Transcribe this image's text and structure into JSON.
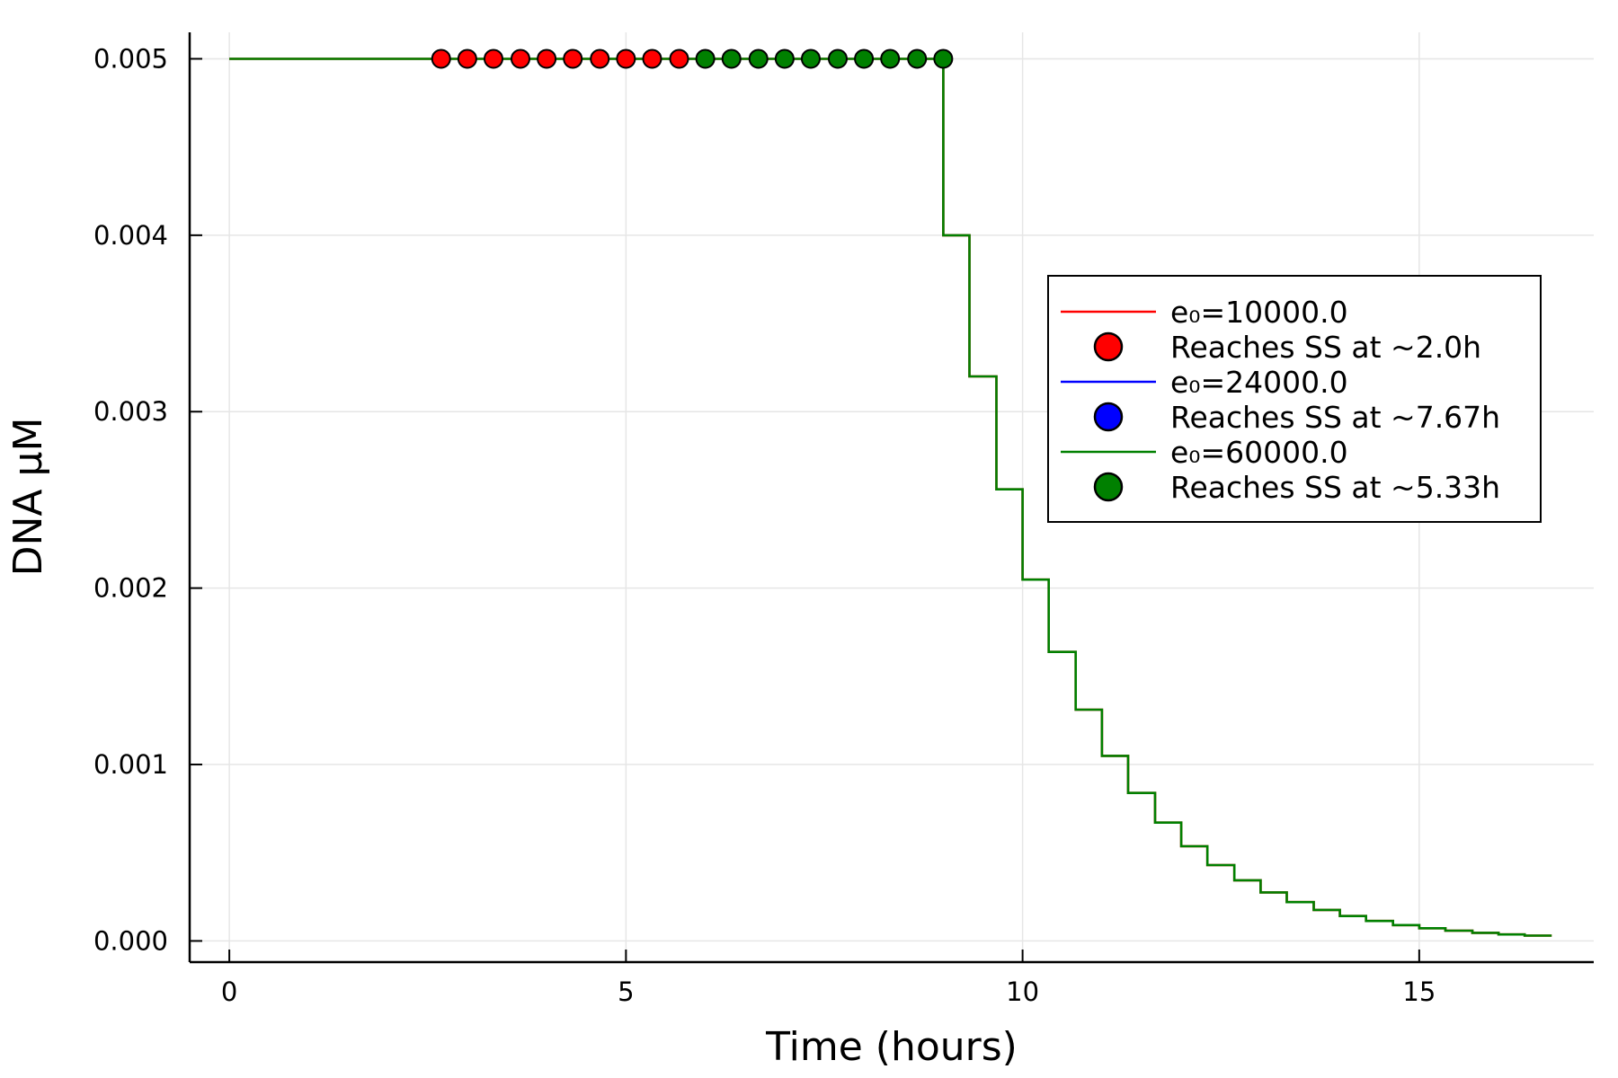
{
  "chart_data": {
    "type": "line",
    "xlabel": "Time (hours)",
    "ylabel": "DNA µM",
    "xlim": [
      -0.5,
      17.2
    ],
    "ylim": [
      -0.00012,
      0.00515
    ],
    "xticks": [
      0,
      5,
      10,
      15
    ],
    "xtick_labels": [
      "0",
      "5",
      "10",
      "15"
    ],
    "yticks": [
      0.0,
      0.001,
      0.002,
      0.003,
      0.004,
      0.005
    ],
    "ytick_labels": [
      "0.000",
      "0.001",
      "0.002",
      "0.003",
      "0.004",
      "0.005"
    ],
    "grid": true,
    "legend_position": "right",
    "series": [
      {
        "name": "e₀=10000.0",
        "color": "#ff0000",
        "kind": "step-line",
        "x": [
          0,
          9.0,
          9.0,
          9.33,
          9.33,
          9.67,
          9.67,
          10.0,
          10.0,
          10.33,
          10.33,
          10.67,
          10.67,
          11.0,
          11.0,
          11.33,
          11.33,
          11.67,
          11.67,
          12.0,
          12.0,
          12.33,
          12.33,
          12.67,
          12.67,
          13.0,
          13.0,
          13.33,
          13.33,
          13.67,
          13.67,
          14.0,
          14.0,
          14.33,
          14.33,
          14.67,
          14.67,
          15.0,
          15.0,
          15.33,
          15.33,
          15.67,
          15.67,
          16.0,
          16.0,
          16.33,
          16.33,
          16.67
        ],
        "y": [
          0.005,
          0.005,
          0.004,
          0.004,
          0.0032,
          0.0032,
          0.00256,
          0.00256,
          0.002048,
          0.002048,
          0.001638,
          0.001638,
          0.001311,
          0.001311,
          0.001049,
          0.001049,
          0.000839,
          0.000839,
          0.000671,
          0.000671,
          0.000537,
          0.000537,
          0.00043,
          0.00043,
          0.000344,
          0.000344,
          0.000275,
          0.000275,
          0.00022,
          0.00022,
          0.000176,
          0.000176,
          0.000141,
          0.000141,
          0.000113,
          0.000113,
          9e-05,
          9e-05,
          7.2e-05,
          7.2e-05,
          5.8e-05,
          5.8e-05,
          4.6e-05,
          4.6e-05,
          3.7e-05,
          3.7e-05,
          3e-05,
          3e-05
        ]
      },
      {
        "name": "Reaches SS at ~2.0h",
        "color": "#ff0000",
        "kind": "markers",
        "x": [
          2.67,
          3.0,
          3.33,
          3.67,
          4.0,
          4.33,
          4.67,
          5.0,
          5.33,
          5.67
        ],
        "y": [
          0.005,
          0.005,
          0.005,
          0.005,
          0.005,
          0.005,
          0.005,
          0.005,
          0.005,
          0.005
        ]
      },
      {
        "name": "e₀=24000.0",
        "color": "#0000ff",
        "kind": "step-line",
        "x": [],
        "y": []
      },
      {
        "name": "Reaches SS at ~7.67h",
        "color": "#0000ff",
        "kind": "markers",
        "x": [],
        "y": []
      },
      {
        "name": "e₀=60000.0",
        "color": "#008000",
        "kind": "step-line",
        "x": [
          0,
          9.0,
          9.0,
          9.33,
          9.33,
          9.67,
          9.67,
          10.0,
          10.0,
          10.33,
          10.33,
          10.67,
          10.67,
          11.0,
          11.0,
          11.33,
          11.33,
          11.67,
          11.67,
          12.0,
          12.0,
          12.33,
          12.33,
          12.67,
          12.67,
          13.0,
          13.0,
          13.33,
          13.33,
          13.67,
          13.67,
          14.0,
          14.0,
          14.33,
          14.33,
          14.67,
          14.67,
          15.0,
          15.0,
          15.33,
          15.33,
          15.67,
          15.67,
          16.0,
          16.0,
          16.33,
          16.33,
          16.67
        ],
        "y": [
          0.005,
          0.005,
          0.004,
          0.004,
          0.0032,
          0.0032,
          0.00256,
          0.00256,
          0.002048,
          0.002048,
          0.001638,
          0.001638,
          0.001311,
          0.001311,
          0.001049,
          0.001049,
          0.000839,
          0.000839,
          0.000671,
          0.000671,
          0.000537,
          0.000537,
          0.00043,
          0.00043,
          0.000344,
          0.000344,
          0.000275,
          0.000275,
          0.00022,
          0.00022,
          0.000176,
          0.000176,
          0.000141,
          0.000141,
          0.000113,
          0.000113,
          9e-05,
          9e-05,
          7.2e-05,
          7.2e-05,
          5.8e-05,
          5.8e-05,
          4.6e-05,
          4.6e-05,
          3.7e-05,
          3.7e-05,
          3e-05,
          3e-05
        ]
      },
      {
        "name": "Reaches SS at ~5.33h",
        "color": "#008000",
        "kind": "markers",
        "x": [
          6.0,
          6.33,
          6.67,
          7.0,
          7.33,
          7.67,
          8.0,
          8.33,
          8.67,
          9.0
        ],
        "y": [
          0.005,
          0.005,
          0.005,
          0.005,
          0.005,
          0.005,
          0.005,
          0.005,
          0.005,
          0.005
        ]
      }
    ]
  }
}
